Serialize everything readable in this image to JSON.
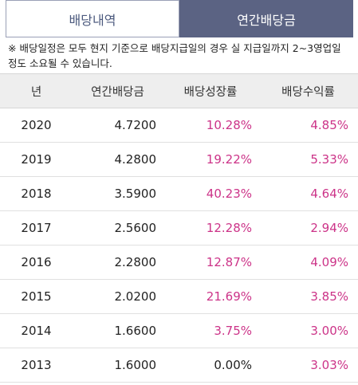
{
  "tabs": {
    "history_label": "배당내역",
    "annual_label": "연간배당금"
  },
  "notice": {
    "text": "※ 배당일정은 모두 현지 기준으로 배당지급일의 경우 실 지급일까지 2~3영업일 정도 소요될 수 있습니다."
  },
  "table": {
    "headers": {
      "year": "년",
      "annual_dividend": "연간배당금",
      "growth": "배당성장률",
      "yield": "배당수익률"
    },
    "rows": [
      {
        "year": "2020",
        "annual_dividend": "4.7200",
        "growth": "10.28%",
        "yield": "4.85%"
      },
      {
        "year": "2019",
        "annual_dividend": "4.2800",
        "growth": "19.22%",
        "yield": "5.33%"
      },
      {
        "year": "2018",
        "annual_dividend": "3.5900",
        "growth": "40.23%",
        "yield": "4.64%"
      },
      {
        "year": "2017",
        "annual_dividend": "2.5600",
        "growth": "12.28%",
        "yield": "2.94%"
      },
      {
        "year": "2016",
        "annual_dividend": "2.2800",
        "growth": "12.87%",
        "yield": "4.09%"
      },
      {
        "year": "2015",
        "annual_dividend": "2.0200",
        "growth": "21.69%",
        "yield": "3.85%"
      },
      {
        "year": "2014",
        "annual_dividend": "1.6600",
        "growth": "3.75%",
        "yield": "3.00%"
      },
      {
        "year": "2013",
        "annual_dividend": "1.6000",
        "growth": "0.00%",
        "yield": "3.03%"
      }
    ]
  },
  "colors": {
    "tab_active_bg": "#5b6383",
    "tab_inactive_text": "#4c5a7e",
    "positive_value": "#cc3388",
    "neutral_value": "#222222",
    "header_bg": "#eeeeee"
  }
}
